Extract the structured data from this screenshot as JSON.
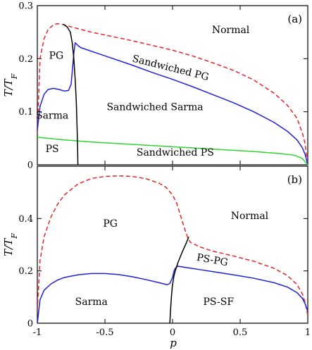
{
  "chart_data": [
    {
      "type": "line",
      "panel_label": "(a)",
      "xlabel": "",
      "ylabel": "T/T",
      "ylabel_sub": "F",
      "xlim": [
        -1,
        1
      ],
      "ylim": [
        0,
        0.3
      ],
      "yticks": [
        0,
        0.1,
        0.2,
        0.3
      ],
      "ytick_labels": [
        "0",
        "0.1",
        "0.2",
        "0.3"
      ],
      "grid": false,
      "series": [
        {
          "color": "#e8252a",
          "dash": "dashed",
          "x": [
            -1,
            -0.98,
            -0.95,
            -0.92,
            -0.88,
            -0.85,
            -0.82,
            -0.78,
            -0.72,
            -0.6,
            -0.45,
            -0.3,
            -0.15,
            0,
            0.15,
            0.3,
            0.45,
            0.6,
            0.75,
            0.85,
            0.92,
            0.96,
            0.98,
            1
          ],
          "y": [
            0.06,
            0.2,
            0.238,
            0.255,
            0.264,
            0.266,
            0.265,
            0.262,
            0.258,
            0.25,
            0.242,
            0.234,
            0.225,
            0.216,
            0.205,
            0.192,
            0.178,
            0.16,
            0.135,
            0.112,
            0.088,
            0.06,
            0.04,
            0
          ]
        },
        {
          "color": "#1f1fe0",
          "dash": "solid",
          "x": [
            -1,
            -0.98,
            -0.95,
            -0.92,
            -0.88,
            -0.84,
            -0.8,
            -0.77,
            -0.75,
            -0.73,
            -0.72,
            -0.7,
            -0.68,
            -0.6,
            -0.45,
            -0.3,
            -0.15,
            0,
            0.15,
            0.3,
            0.45,
            0.6,
            0.75,
            0.85,
            0.92,
            0.96,
            0.98,
            1
          ],
          "y": [
            0.065,
            0.11,
            0.133,
            0.142,
            0.144,
            0.142,
            0.139,
            0.14,
            0.152,
            0.21,
            0.23,
            0.225,
            0.221,
            0.214,
            0.201,
            0.188,
            0.174,
            0.161,
            0.147,
            0.132,
            0.117,
            0.1,
            0.08,
            0.063,
            0.047,
            0.032,
            0.02,
            0
          ]
        },
        {
          "color": "#2fd52f",
          "dash": "solid",
          "x": [
            -1,
            -0.8,
            -0.6,
            -0.4,
            -0.2,
            0,
            0.2,
            0.4,
            0.6,
            0.8,
            0.9,
            0.96,
            1
          ],
          "y": [
            0.052,
            0.047,
            0.043,
            0.04,
            0.037,
            0.034,
            0.031,
            0.028,
            0.025,
            0.021,
            0.018,
            0.012,
            0
          ]
        },
        {
          "color": "#000000",
          "dash": "solid",
          "x": [
            -0.808,
            -0.78,
            -0.756,
            -0.742,
            -0.73,
            -0.72,
            -0.712,
            -0.706,
            -0.702,
            -0.7
          ],
          "y": [
            0.265,
            0.26,
            0.25,
            0.23,
            0.2,
            0.16,
            0.12,
            0.07,
            0.03,
            0
          ]
        }
      ],
      "annotations": [
        {
          "text": "Normal",
          "x": 0.43,
          "y": 0.248
        },
        {
          "text": "PG",
          "x": -0.86,
          "y": 0.2
        },
        {
          "text": "Sandwiched PG",
          "x": -0.02,
          "y": 0.177,
          "rotate": 14
        },
        {
          "text": "Sarma",
          "x": -0.89,
          "y": 0.087
        },
        {
          "text": "Sandwiched Sarma",
          "x": -0.13,
          "y": 0.103
        },
        {
          "text": "PS",
          "x": -0.89,
          "y": 0.024
        },
        {
          "text": "Sandwiched PS",
          "x": 0.02,
          "y": 0.017
        }
      ]
    },
    {
      "type": "line",
      "panel_label": "(b)",
      "xlabel": "p",
      "ylabel": "T/T",
      "ylabel_sub": "F",
      "xlim": [
        -1,
        1
      ],
      "ylim": [
        0,
        0.6
      ],
      "xticks": [
        -1,
        -0.5,
        0,
        0.5,
        1
      ],
      "xtick_labels": [
        "-1",
        "-0.5",
        "0",
        "0.5",
        "1"
      ],
      "yticks": [
        0,
        0.2,
        0.4
      ],
      "ytick_labels": [
        "0",
        "0.2",
        "0.4"
      ],
      "grid": false,
      "series": [
        {
          "color": "#e8252a",
          "dash": "dashed",
          "x": [
            -1,
            -0.98,
            -0.95,
            -0.9,
            -0.85,
            -0.8,
            -0.7,
            -0.6,
            -0.5,
            -0.4,
            -0.3,
            -0.2,
            -0.1,
            -0.05,
            0,
            0.03,
            0.06,
            0.09,
            0.11,
            0.13,
            0.2,
            0.3,
            0.45,
            0.6,
            0.75,
            0.85,
            0.92,
            0.96,
            0.98,
            1
          ],
          "y": [
            0.05,
            0.24,
            0.33,
            0.405,
            0.455,
            0.49,
            0.532,
            0.553,
            0.561,
            0.563,
            0.561,
            0.553,
            0.535,
            0.52,
            0.49,
            0.46,
            0.41,
            0.36,
            0.33,
            0.31,
            0.292,
            0.275,
            0.257,
            0.237,
            0.21,
            0.182,
            0.148,
            0.112,
            0.08,
            0.03
          ]
        },
        {
          "color": "#1f1fe0",
          "dash": "solid",
          "x": [
            -1,
            -0.98,
            -0.95,
            -0.9,
            -0.85,
            -0.8,
            -0.7,
            -0.6,
            -0.5,
            -0.4,
            -0.3,
            -0.2,
            -0.1,
            -0.04,
            -0.02,
            0,
            0.01,
            0.02,
            0.04,
            0.1,
            0.2,
            0.3,
            0.45,
            0.6,
            0.75,
            0.85,
            0.92,
            0.96,
            0.98,
            1
          ],
          "y": [
            0,
            0.09,
            0.126,
            0.15,
            0.165,
            0.175,
            0.185,
            0.19,
            0.19,
            0.186,
            0.178,
            0.167,
            0.155,
            0.147,
            0.152,
            0.175,
            0.198,
            0.21,
            0.218,
            0.213,
            0.205,
            0.197,
            0.185,
            0.172,
            0.155,
            0.138,
            0.117,
            0.095,
            0.075,
            0.045
          ]
        },
        {
          "color": "#000000",
          "dash": "solid",
          "x": [
            -0.02,
            -0.016,
            -0.01,
            -0.002,
            0.01,
            0.02,
            0.04,
            0.07,
            0.1,
            0.12
          ],
          "y": [
            0,
            0.04,
            0.09,
            0.14,
            0.18,
            0.2,
            0.232,
            0.27,
            0.305,
            0.33
          ]
        }
      ],
      "annotations": [
        {
          "text": "Normal",
          "x": 0.57,
          "y": 0.398
        },
        {
          "text": "PG",
          "x": -0.46,
          "y": 0.368
        },
        {
          "text": "PS-PG",
          "x": 0.29,
          "y": 0.23,
          "rotate": 10
        },
        {
          "text": "Sarma",
          "x": -0.6,
          "y": 0.07
        },
        {
          "text": "PS-SF",
          "x": 0.34,
          "y": 0.07
        }
      ]
    }
  ]
}
